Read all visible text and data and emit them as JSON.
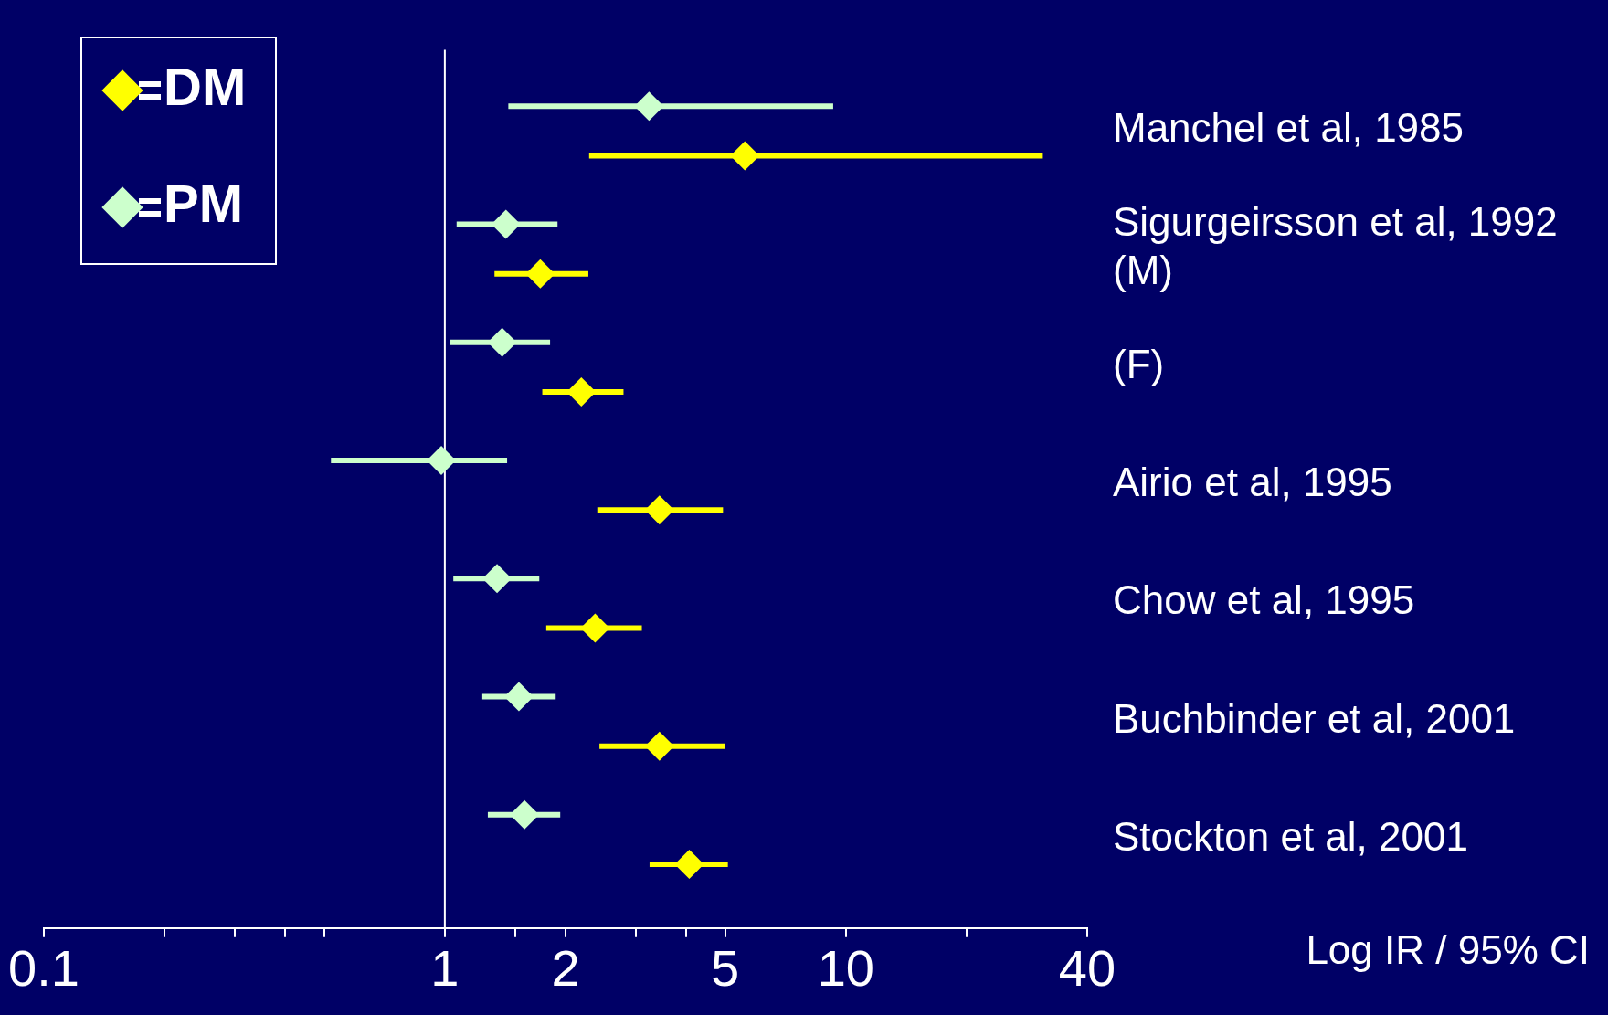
{
  "chart_data": {
    "type": "scatter",
    "orientation": "horizontal",
    "xlabel": "Log IR / 95% CI",
    "categories": [
      "Manchel et al, 1985",
      "Sigurgeirsson et al, 1992\n(M)",
      "(F)",
      "Airio et al, 1995",
      "Chow et al, 1995",
      "Buchbinder et al, 2001",
      "Stockton et al, 2001"
    ],
    "series": [
      {
        "name": "DM",
        "color": "#ffff00",
        "values": [
          5.6,
          1.73,
          2.19,
          3.43,
          2.37,
          3.43,
          4.07
        ],
        "errors": [
          [
            2.29,
            31
          ],
          [
            1.33,
            2.28
          ],
          [
            1.75,
            2.79
          ],
          [
            2.4,
            4.94
          ],
          [
            1.79,
            3.1
          ],
          [
            2.43,
            5.0
          ],
          [
            3.24,
            5.08
          ]
        ]
      },
      {
        "name": "PM",
        "color": "#ccffcc",
        "values": [
          3.23,
          1.42,
          1.39,
          0.98,
          1.35,
          1.53,
          1.58
        ],
        "errors": [
          [
            1.44,
            9.3
          ],
          [
            1.07,
            1.91
          ],
          [
            1.03,
            1.83
          ],
          [
            0.52,
            1.43
          ],
          [
            1.05,
            1.72
          ],
          [
            1.24,
            1.89
          ],
          [
            1.28,
            1.94
          ]
        ]
      }
    ],
    "xlim": [
      0.1,
      40
    ],
    "xticks": [
      0.1,
      {
        "value": 0.2,
        "label": null
      },
      {
        "value": 0.3,
        "label": null
      },
      {
        "value": 0.4,
        "label": null
      },
      {
        "value": 0.5,
        "label": null
      },
      1,
      {
        "value": 1.5,
        "label": null
      },
      2,
      {
        "value": 3,
        "label": null
      },
      {
        "value": 4,
        "label": null
      },
      5,
      10,
      {
        "value": 20,
        "label": null
      },
      40
    ],
    "log": "x",
    "marker": "diamond",
    "legend": "top left",
    "grid": false,
    "ref_lines": [
      {
        "axis": "x",
        "value": 1,
        "color": "#ffffff"
      }
    ]
  }
}
